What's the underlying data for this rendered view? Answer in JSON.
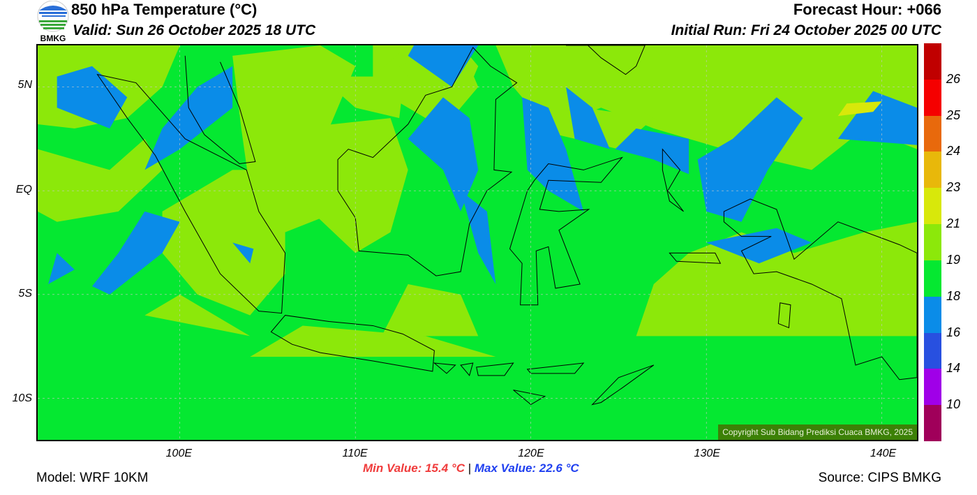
{
  "header": {
    "title": "850 hPa Temperature (°C)",
    "valid": "Valid: Sun 26 October 2025 18 UTC",
    "forecast_hour": "Forecast Hour: +066",
    "initial_run": "Initial Run: Fri 24 October 2025 00 UTC",
    "logo_text": "BMKG"
  },
  "map": {
    "lon_range": [
      91.9,
      142
    ],
    "lat_range": [
      -12,
      7
    ],
    "lat_ticks": [
      {
        "value": 5,
        "label": "5N"
      },
      {
        "value": 0,
        "label": "EQ"
      },
      {
        "value": -5,
        "label": "5S"
      },
      {
        "value": -10,
        "label": "10S"
      }
    ],
    "lon_ticks": [
      {
        "value": 100,
        "label": "100E"
      },
      {
        "value": 110,
        "label": "110E"
      },
      {
        "value": 120,
        "label": "120E"
      },
      {
        "value": 130,
        "label": "130E"
      },
      {
        "value": 140,
        "label": "140E"
      }
    ],
    "copyright": "Copyright Sub Bidang Prediksi Cuaca BMKG, 2025"
  },
  "colorbar": {
    "colors": [
      "#c00000",
      "#f50000",
      "#e8690c",
      "#e8b80a",
      "#d8e80a",
      "#8ce80a",
      "#05e831",
      "#0a8ce8",
      "#2850e0",
      "#a000e8",
      "#a0005a"
    ],
    "labels": [
      "26",
      "25",
      "24",
      "23",
      "21",
      "19",
      "18",
      "16",
      "14",
      "10"
    ]
  },
  "stats": {
    "min": "Min Value: 15.4 °C",
    "separator": "|",
    "max": "Max Value: 22.6 °C",
    "min_color": "#f03c3c",
    "max_color": "#2040f0"
  },
  "footer": {
    "model": "Model: WRF 10KM",
    "source": "Source: CIPS BMKG"
  }
}
